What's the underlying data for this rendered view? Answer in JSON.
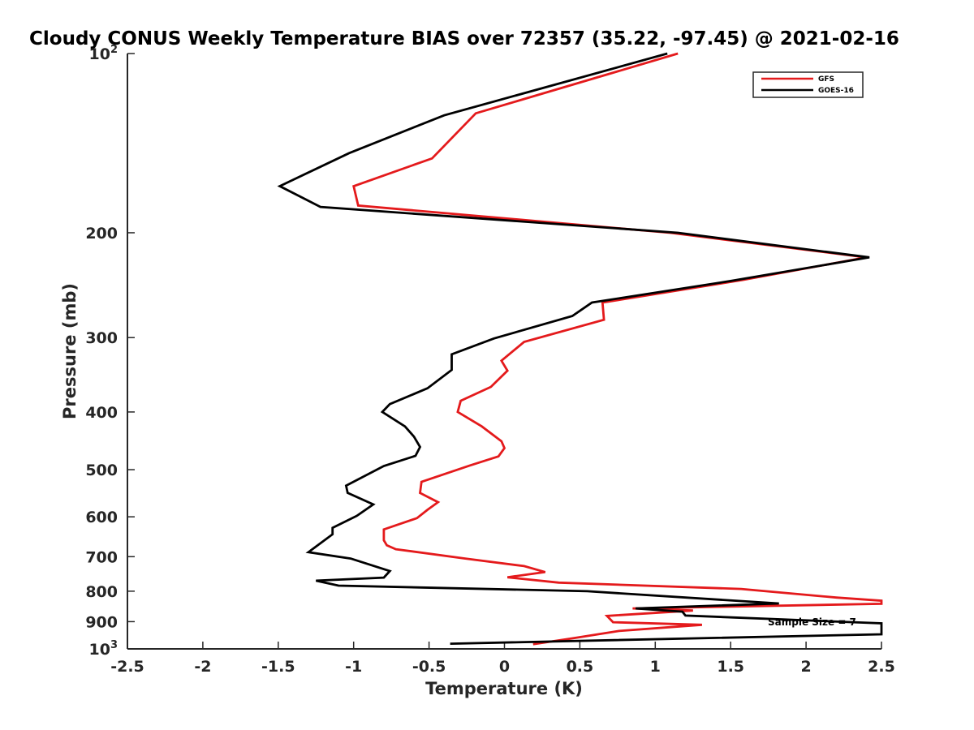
{
  "chart_data": {
    "type": "line",
    "title": "Cloudy CONUS Weekly Temperature BIAS over 72357 (35.22, -97.45) @ 2021-02-16",
    "xlabel": "Temperature (K)",
    "ylabel": "Pressure (mb)",
    "xlim": [
      -2.5,
      2.5
    ],
    "ylim": [
      100,
      1000
    ],
    "y_scale": "log",
    "y_reversed": true,
    "grid": false,
    "legend_position": "top-right",
    "x_ticks": [
      "-2.5",
      "-2",
      "-1.5",
      "-1",
      "-0.5",
      "0",
      "0.5",
      "1",
      "1.5",
      "2",
      "2.5"
    ],
    "x_tick_values": [
      -2.5,
      -2,
      -1.5,
      -1,
      -0.5,
      0,
      0.5,
      1,
      1.5,
      2,
      2.5
    ],
    "y_ticks": [
      {
        "value": 100,
        "base": "10",
        "exp": "2"
      },
      {
        "value": 200,
        "label": "200"
      },
      {
        "value": 300,
        "label": "300"
      },
      {
        "value": 400,
        "label": "400"
      },
      {
        "value": 500,
        "label": "500"
      },
      {
        "value": 600,
        "label": "600"
      },
      {
        "value": 700,
        "label": "700"
      },
      {
        "value": 800,
        "label": "800"
      },
      {
        "value": 900,
        "label": "900"
      },
      {
        "value": 1000,
        "base": "10",
        "exp": "3"
      }
    ],
    "annotation": "Sample Size = 7",
    "series": [
      {
        "name": "GFS",
        "color": "#e41a1c",
        "points": [
          [
            1.15,
            100
          ],
          [
            -0.19,
            126
          ],
          [
            -0.48,
            150
          ],
          [
            -1.0,
            167
          ],
          [
            -0.97,
            180
          ],
          [
            1.1,
            200
          ],
          [
            2.4,
            220
          ],
          [
            1.58,
            240
          ],
          [
            0.65,
            262
          ],
          [
            0.66,
            280
          ],
          [
            0.13,
            305
          ],
          [
            -0.02,
            328
          ],
          [
            0.02,
            341
          ],
          [
            -0.09,
            363
          ],
          [
            -0.29,
            383
          ],
          [
            -0.31,
            400
          ],
          [
            -0.15,
            423
          ],
          [
            -0.02,
            448
          ],
          [
            0.0,
            460
          ],
          [
            -0.04,
            475
          ],
          [
            -0.23,
            492
          ],
          [
            -0.55,
            524
          ],
          [
            -0.56,
            547
          ],
          [
            -0.44,
            567
          ],
          [
            -0.51,
            584
          ],
          [
            -0.58,
            603
          ],
          [
            -0.8,
            630
          ],
          [
            -0.8,
            657
          ],
          [
            -0.78,
            670
          ],
          [
            -0.72,
            680
          ],
          [
            -0.26,
            705
          ],
          [
            0.13,
            726
          ],
          [
            0.27,
            743
          ],
          [
            0.02,
            758
          ],
          [
            0.36,
            774
          ],
          [
            1.57,
            793
          ],
          [
            2.2,
            820
          ],
          [
            2.5,
            830
          ],
          [
            2.5,
            840
          ],
          [
            0.85,
            855
          ],
          [
            1.25,
            862
          ],
          [
            0.68,
            880
          ],
          [
            0.72,
            902
          ],
          [
            1.31,
            911
          ],
          [
            0.76,
            933
          ],
          [
            0.45,
            960
          ],
          [
            0.19,
            982
          ]
        ]
      },
      {
        "name": "GOES-16",
        "color": "#000000",
        "points": [
          [
            1.08,
            100
          ],
          [
            -0.4,
            127
          ],
          [
            -1.03,
            147
          ],
          [
            -1.49,
            167
          ],
          [
            -1.22,
            181
          ],
          [
            1.15,
            200
          ],
          [
            2.42,
            220
          ],
          [
            1.5,
            241
          ],
          [
            0.58,
            262
          ],
          [
            0.45,
            276
          ],
          [
            -0.07,
            301
          ],
          [
            -0.35,
            320
          ],
          [
            -0.35,
            340
          ],
          [
            -0.51,
            365
          ],
          [
            -0.76,
            388
          ],
          [
            -0.81,
            400
          ],
          [
            -0.66,
            423
          ],
          [
            -0.6,
            440
          ],
          [
            -0.56,
            458
          ],
          [
            -0.59,
            474
          ],
          [
            -0.8,
            493
          ],
          [
            -1.05,
            532
          ],
          [
            -1.04,
            547
          ],
          [
            -0.87,
            572
          ],
          [
            -0.98,
            598
          ],
          [
            -1.14,
            626
          ],
          [
            -1.14,
            642
          ],
          [
            -1.3,
            688
          ],
          [
            -1.02,
            705
          ],
          [
            -0.76,
            740
          ],
          [
            -0.8,
            759
          ],
          [
            -1.25,
            768
          ],
          [
            -1.1,
            783
          ],
          [
            0.55,
            800
          ],
          [
            1.82,
            839
          ],
          [
            0.87,
            855
          ],
          [
            1.18,
            866
          ],
          [
            1.2,
            879
          ],
          [
            2.5,
            906
          ],
          [
            2.5,
            945
          ],
          [
            -0.36,
            980
          ]
        ]
      }
    ]
  }
}
